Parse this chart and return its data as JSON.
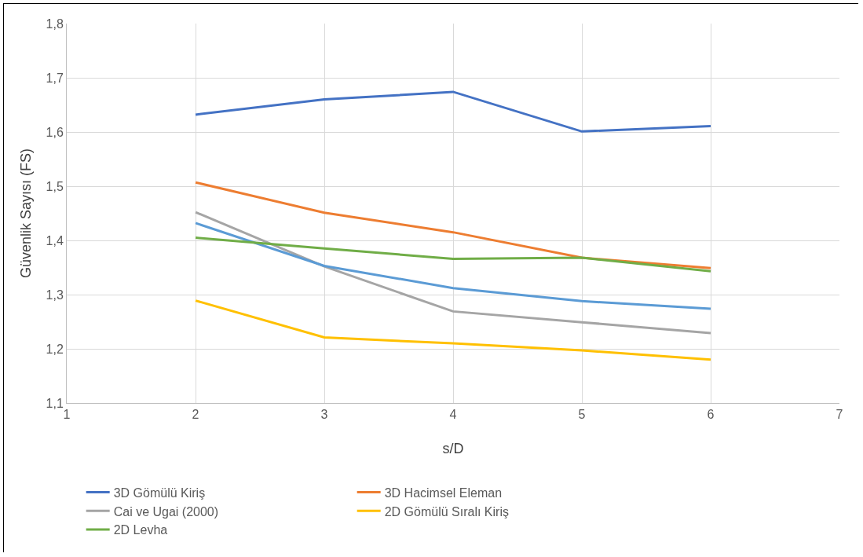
{
  "chart_data": {
    "type": "line",
    "xlabel": "s/D",
    "ylabel": "Güvenlik Sayısı (FS)",
    "x": [
      2,
      3,
      4,
      5,
      6
    ],
    "series": [
      {
        "name": "3D Gömülü Kiriş",
        "color": "#4472c4",
        "values": [
          1.632,
          1.66,
          1.674,
          1.601,
          1.611
        ]
      },
      {
        "name": "3D Hacimsel Eleman",
        "color": "#ed7d31",
        "values": [
          1.507,
          1.451,
          1.415,
          1.368,
          1.349
        ]
      },
      {
        "name": "Cai ve Ugai (2000)",
        "color": "#a5a5a5",
        "values": [
          1.452,
          1.352,
          1.269,
          1.249,
          1.229
        ]
      },
      {
        "name": "2D Gömülü Sıralı Kiriş",
        "color": "#ffc000",
        "values": [
          1.289,
          1.221,
          1.21,
          1.197,
          1.18
        ]
      },
      {
        "color": "#5b9bd5",
        "values": [
          1.432,
          1.353,
          1.312,
          1.288,
          1.274
        ]
      },
      {
        "name": "2D Levha",
        "color": "#70ad47",
        "values": [
          1.405,
          1.385,
          1.366,
          1.368,
          1.343
        ]
      }
    ],
    "xlim": [
      1,
      7
    ],
    "xticks": [
      1,
      2,
      3,
      4,
      5,
      6,
      7
    ],
    "ylim": [
      1.1,
      1.8
    ],
    "yticks": [
      {
        "value": 1.1,
        "label": "1,1"
      },
      {
        "value": 1.2,
        "label": "1,2"
      },
      {
        "value": 1.3,
        "label": "1,3"
      },
      {
        "value": 1.4,
        "label": "1,4"
      },
      {
        "value": 1.5,
        "label": "1,5"
      },
      {
        "value": 1.6,
        "label": "1,6"
      },
      {
        "value": 1.7,
        "label": "1,7"
      },
      {
        "value": 1.8,
        "label": "1,8"
      }
    ],
    "grid": true,
    "legend": "bottom",
    "marker": "none",
    "line_style": "solid"
  }
}
